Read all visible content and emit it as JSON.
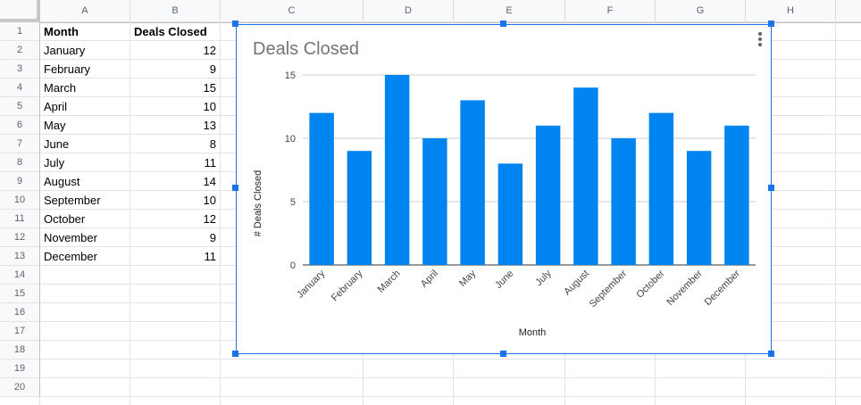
{
  "columns": [
    "A",
    "B",
    "C",
    "D",
    "E",
    "F",
    "G",
    "H"
  ],
  "rows": [
    "1",
    "2",
    "3",
    "4",
    "5",
    "6",
    "7",
    "8",
    "9",
    "10",
    "11",
    "12",
    "13",
    "14",
    "15",
    "16",
    "17",
    "18",
    "19",
    "20"
  ],
  "table": {
    "header": [
      "Month",
      "Deals Closed"
    ],
    "data": [
      [
        "January",
        "12"
      ],
      [
        "February",
        "9"
      ],
      [
        "March",
        "15"
      ],
      [
        "April",
        "10"
      ],
      [
        "May",
        "13"
      ],
      [
        "June",
        "8"
      ],
      [
        "July",
        "11"
      ],
      [
        "August",
        "14"
      ],
      [
        "September",
        "10"
      ],
      [
        "October",
        "12"
      ],
      [
        "November",
        "9"
      ],
      [
        "December",
        "11"
      ]
    ]
  },
  "chart_data": {
    "type": "bar",
    "title": "Deals Closed",
    "xlabel": "Month",
    "ylabel": "# Deals Closed",
    "categories": [
      "January",
      "February",
      "March",
      "April",
      "May",
      "June",
      "July",
      "August",
      "September",
      "October",
      "November",
      "December"
    ],
    "values": [
      12,
      9,
      15,
      10,
      13,
      8,
      11,
      14,
      10,
      12,
      9,
      11
    ],
    "ylim": [
      0,
      15
    ],
    "yticks": [
      0,
      5,
      10,
      15
    ],
    "grid": true,
    "legend": "none",
    "bar_color": "#0084ef"
  },
  "colors": {
    "selection": "#1a73e8",
    "bar": "#0084ef"
  },
  "icons": {
    "chart_menu": "more-vert-icon"
  }
}
